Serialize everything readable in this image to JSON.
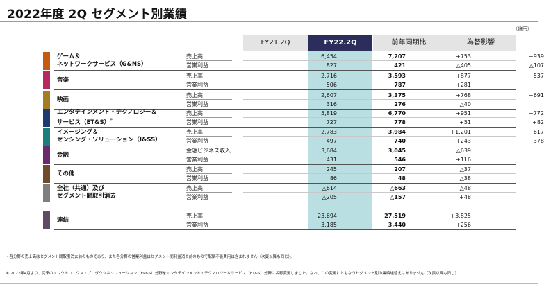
{
  "title": "2022年度 2Q セグメント別業績",
  "unit": "（億円）",
  "headers": [
    "FY21.2Q",
    "FY22.2Q",
    "前年同期比",
    "為替影響"
  ],
  "segments": [
    {
      "name1": "ゲーム＆",
      "name2": "ネットワークサービス（G&NS）",
      "color": "#c55a11",
      "rows": [
        {
          "label": "売上高",
          "v1": "6,454",
          "v2": "7,207",
          "v3": "+753",
          "v4": "+939"
        },
        {
          "label": "営業利益",
          "v1": "827",
          "v2": "421",
          "v3": "△405",
          "v4": "△107"
        }
      ]
    },
    {
      "name1": "音楽",
      "name2": "",
      "color": "#b7285e",
      "rows": [
        {
          "label": "売上高",
          "v1": "2,716",
          "v2": "3,593",
          "v3": "+877",
          "v4": "+537"
        },
        {
          "label": "営業利益",
          "v1": "506",
          "v2": "787",
          "v3": "+281",
          "v4": ""
        }
      ]
    },
    {
      "name1": "映画",
      "name2": "",
      "color": "#a27d22",
      "rows": [
        {
          "label": "売上高",
          "v1": "2,607",
          "v2": "3,375",
          "v3": "+768",
          "v4": "+691"
        },
        {
          "label": "営業利益",
          "v1": "316",
          "v2": "276",
          "v3": "△40",
          "v4": ""
        }
      ]
    },
    {
      "name1": "エンタテインメント・テクノロジー＆",
      "name2": "サービス（ET&S）",
      "mark": "*",
      "color": "#1f3b6e",
      "rows": [
        {
          "label": "売上高",
          "v1": "5,819",
          "v2": "6,770",
          "v3": "+951",
          "v4": "+772"
        },
        {
          "label": "営業利益",
          "v1": "727",
          "v2": "778",
          "v3": "+51",
          "v4": "+82"
        }
      ]
    },
    {
      "name1": "イメージング＆",
      "name2": "センシング・ソリューション（I&SS）",
      "color": "#1c7f7c",
      "rows": [
        {
          "label": "売上高",
          "v1": "2,783",
          "v2": "3,984",
          "v3": "+1,201",
          "v4": "+617"
        },
        {
          "label": "営業利益",
          "v1": "497",
          "v2": "740",
          "v3": "+243",
          "v4": "+378"
        }
      ]
    },
    {
      "name1": "金融",
      "name2": "",
      "color": "#6b2a6e",
      "rows": [
        {
          "label": "金融ビジネス収入",
          "v1": "3,684",
          "v2": "3,045",
          "v3": "△639",
          "v4": ""
        },
        {
          "label": "営業利益",
          "v1": "431",
          "v2": "546",
          "v3": "+116",
          "v4": ""
        }
      ]
    },
    {
      "name1": "その他",
      "name2": "",
      "color": "#6e4b2a",
      "rows": [
        {
          "label": "売上高",
          "v1": "245",
          "v2": "207",
          "v3": "△37",
          "v4": ""
        },
        {
          "label": "営業利益",
          "v1": "86",
          "v2": "48",
          "v3": "△38",
          "v4": ""
        }
      ]
    },
    {
      "name1": "全社（共通）及び",
      "name2": "セグメント間取引消去",
      "color": "#7f7f7f",
      "rows": [
        {
          "label": "売上高",
          "v1": "△614",
          "v2": "△663",
          "v3": "△48",
          "v4": ""
        },
        {
          "label": "営業利益",
          "v1": "△205",
          "v2": "△157",
          "v3": "+48",
          "v4": ""
        }
      ]
    }
  ],
  "consolidated": {
    "name1": "連結",
    "name2": "",
    "color": "#5e4b66",
    "rows": [
      {
        "label": "売上高",
        "v1": "23,694",
        "v2": "27,519",
        "v3": "+3,825",
        "v4": ""
      },
      {
        "label": "営業利益",
        "v1": "3,185",
        "v2": "3,440",
        "v3": "+256",
        "v4": ""
      }
    ]
  },
  "notes": [
    "・各分野の売上高はセグメント間取引消去前のものであり、また各分野の営業利益はセグメント間利益消去前のもので配賦不能費用は含まれません（次頁以降も同じ）。",
    "＊ 2022年4月より、従来のエレクトロニクス・プロダクツ＆ソリューション（EP&S）分野をエンタテインメント・テクノロジー＆サービス（ET&S）分野に名称変更しました。なお、この変更にともなうセグメント別の業績組替えはありません（次頁以降も同じ）"
  ]
}
